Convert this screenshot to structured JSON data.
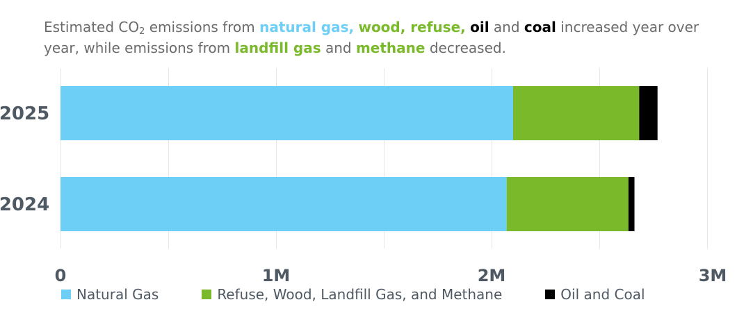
{
  "chart_data": {
    "type": "bar",
    "orientation": "horizontal",
    "stacked": true,
    "subtitle": {
      "p1": "Estimated CO",
      "p1_sub": "2",
      "p2": " emissions from ",
      "hl1": "natural gas,",
      "p3": " ",
      "hl2": "wood, refuse,",
      "p4": " ",
      "hl3": "oil",
      "p5": " and ",
      "hl4": "coal",
      "p6": " increased year over year, while emissions from ",
      "hl5": "landfill gas",
      "p7": " and ",
      "hl6": "methane",
      "p8": " decreased."
    },
    "categories": [
      "2025",
      "2024"
    ],
    "series": [
      {
        "name": "Natural Gas",
        "color": "#6dcff6",
        "values": [
          2100000,
          2070000
        ]
      },
      {
        "name": "Refuse, Wood, Landfill Gas, and Methane",
        "color": "#7aba2a",
        "values": [
          585000,
          565000
        ]
      },
      {
        "name": "Oil and Coal",
        "color": "#000000",
        "values": [
          85000,
          28000
        ]
      }
    ],
    "xlim": [
      0,
      3000000
    ],
    "x_ticks": [
      {
        "value": 0,
        "label": "0"
      },
      {
        "value": 1000000,
        "label": "1M"
      },
      {
        "value": 2000000,
        "label": "2M"
      },
      {
        "value": 3000000,
        "label": "3M"
      }
    ],
    "x_gridlines": [
      0,
      500000,
      1000000,
      1500000,
      2000000,
      2500000,
      3000000
    ],
    "grid": true,
    "legend_position": "bottom"
  }
}
